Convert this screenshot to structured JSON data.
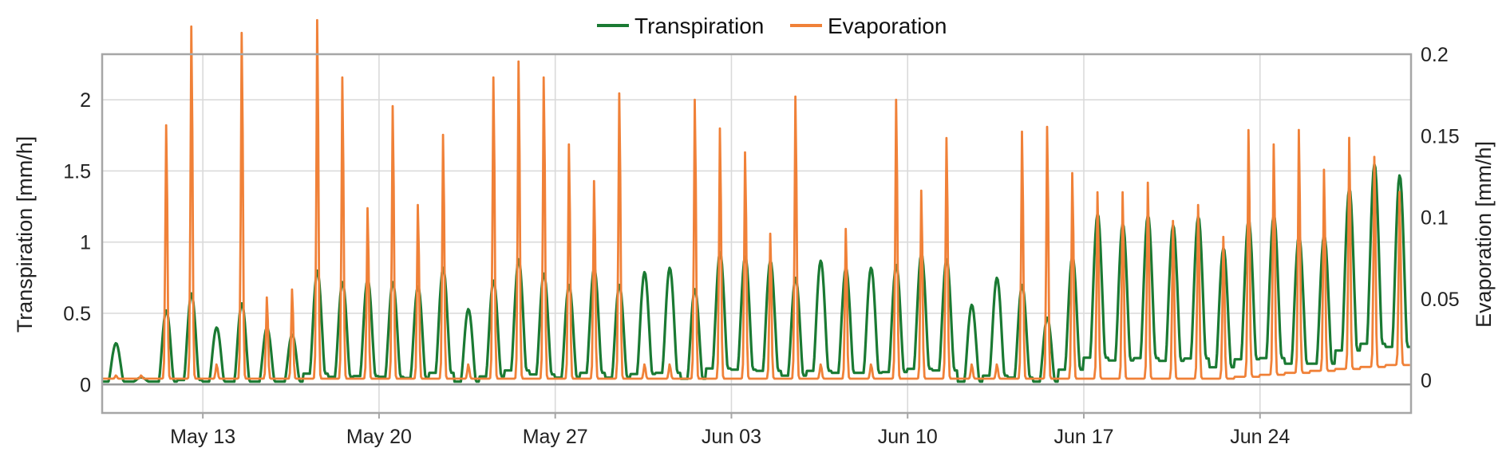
{
  "chart_data": {
    "type": "line",
    "title": "",
    "legend": {
      "placement": "top-center",
      "entries": [
        "Transpiration",
        "Evaporation"
      ]
    },
    "grid": true,
    "x_axis": {
      "type": "date",
      "range": [
        "May 9",
        "Jun 29"
      ],
      "tick_labels": [
        "May 13",
        "May 20",
        "May 27",
        "Jun 03",
        "Jun 10",
        "Jun 17",
        "Jun 24"
      ],
      "tick_dates": [
        "May 13",
        "May 20",
        "May 27",
        "Jun 3",
        "Jun 10",
        "Jun 17",
        "Jun 24"
      ]
    },
    "y_left": {
      "label": "Transpiration [mm/h]",
      "range": [
        -0.2,
        2.32
      ],
      "ticks": [
        0,
        0.5,
        1,
        1.5,
        2
      ],
      "tick_labels": [
        "0",
        "0.5",
        "1",
        "1.5",
        "2"
      ]
    },
    "y_right": {
      "label": "Evaporation [mm/h]",
      "range": [
        -0.02,
        0.2
      ],
      "ticks": [
        0,
        0.05,
        0.1,
        0.15,
        0.2
      ],
      "tick_labels": [
        "0",
        "0.05",
        "0.1",
        "0.15",
        "0.2"
      ]
    },
    "series": [
      {
        "name": "Transpiration",
        "axis": "left",
        "color": "#1a7a33",
        "daily_peaks": [
          {
            "date": "May 9",
            "value": 0.29
          },
          {
            "date": "May 10",
            "value": 0.05
          },
          {
            "date": "May 11",
            "value": 0.52
          },
          {
            "date": "May 12",
            "value": 0.64
          },
          {
            "date": "May 13",
            "value": 0.4
          },
          {
            "date": "May 14",
            "value": 0.57
          },
          {
            "date": "May 15",
            "value": 0.4
          },
          {
            "date": "May 16",
            "value": 0.35
          },
          {
            "date": "May 17",
            "value": 0.8
          },
          {
            "date": "May 18",
            "value": 0.72
          },
          {
            "date": "May 19",
            "value": 0.74
          },
          {
            "date": "May 20",
            "value": 0.72
          },
          {
            "date": "May 21",
            "value": 0.69
          },
          {
            "date": "May 22",
            "value": 0.82
          },
          {
            "date": "May 23",
            "value": 0.53
          },
          {
            "date": "May 24",
            "value": 0.73
          },
          {
            "date": "May 25",
            "value": 0.88
          },
          {
            "date": "May 26",
            "value": 0.78
          },
          {
            "date": "May 27",
            "value": 0.7
          },
          {
            "date": "May 28",
            "value": 0.82
          },
          {
            "date": "May 29",
            "value": 0.7
          },
          {
            "date": "May 30",
            "value": 0.79
          },
          {
            "date": "May 31",
            "value": 0.82
          },
          {
            "date": "Jun 1",
            "value": 0.67
          },
          {
            "date": "Jun 2",
            "value": 0.93
          },
          {
            "date": "Jun 3",
            "value": 0.9
          },
          {
            "date": "Jun 4",
            "value": 0.87
          },
          {
            "date": "Jun 5",
            "value": 0.75
          },
          {
            "date": "Jun 6",
            "value": 0.87
          },
          {
            "date": "Jun 7",
            "value": 0.82
          },
          {
            "date": "Jun 8",
            "value": 0.82
          },
          {
            "date": "Jun 9",
            "value": 0.84
          },
          {
            "date": "Jun 10",
            "value": 0.92
          },
          {
            "date": "Jun 11",
            "value": 0.88
          },
          {
            "date": "Jun 12",
            "value": 0.56
          },
          {
            "date": "Jun 13",
            "value": 0.75
          },
          {
            "date": "Jun 14",
            "value": 0.7
          },
          {
            "date": "Jun 15",
            "value": 0.47
          },
          {
            "date": "Jun 16",
            "value": 0.9
          },
          {
            "date": "Jun 17",
            "value": 1.2
          },
          {
            "date": "Jun 18",
            "value": 1.13
          },
          {
            "date": "Jun 19",
            "value": 1.19
          },
          {
            "date": "Jun 20",
            "value": 1.12
          },
          {
            "date": "Jun 21",
            "value": 1.18
          },
          {
            "date": "Jun 22",
            "value": 0.96
          },
          {
            "date": "Jun 23",
            "value": 1.16
          },
          {
            "date": "Jun 24",
            "value": 1.19
          },
          {
            "date": "Jun 25",
            "value": 1.05
          },
          {
            "date": "Jun 26",
            "value": 1.05
          },
          {
            "date": "Jun 27",
            "value": 1.38
          },
          {
            "date": "Jun 28",
            "value": 1.55
          },
          {
            "date": "Jun 29",
            "value": 1.47
          }
        ]
      },
      {
        "name": "Evaporation",
        "axis": "right",
        "color": "#f08138",
        "daily_peaks": [
          {
            "date": "May 9",
            "value": 0.003
          },
          {
            "date": "May 10",
            "value": 0.003
          },
          {
            "date": "May 11",
            "value": 0.16
          },
          {
            "date": "May 12",
            "value": 0.222
          },
          {
            "date": "May 13",
            "value": 0.01
          },
          {
            "date": "May 14",
            "value": 0.218
          },
          {
            "date": "May 15",
            "value": 0.052
          },
          {
            "date": "May 16",
            "value": 0.057
          },
          {
            "date": "May 17",
            "value": 0.226
          },
          {
            "date": "May 18",
            "value": 0.19
          },
          {
            "date": "May 19",
            "value": 0.108
          },
          {
            "date": "May 20",
            "value": 0.172
          },
          {
            "date": "May 21",
            "value": 0.11
          },
          {
            "date": "May 22",
            "value": 0.154
          },
          {
            "date": "May 23",
            "value": 0.01
          },
          {
            "date": "May 24",
            "value": 0.19
          },
          {
            "date": "May 25",
            "value": 0.2
          },
          {
            "date": "May 26",
            "value": 0.19
          },
          {
            "date": "May 27",
            "value": 0.148
          },
          {
            "date": "May 28",
            "value": 0.125
          },
          {
            "date": "May 29",
            "value": 0.18
          },
          {
            "date": "May 30",
            "value": 0.01
          },
          {
            "date": "May 31",
            "value": 0.01
          },
          {
            "date": "Jun 1",
            "value": 0.176
          },
          {
            "date": "Jun 2",
            "value": 0.158
          },
          {
            "date": "Jun 3",
            "value": 0.143
          },
          {
            "date": "Jun 4",
            "value": 0.092
          },
          {
            "date": "Jun 5",
            "value": 0.178
          },
          {
            "date": "Jun 6",
            "value": 0.01
          },
          {
            "date": "Jun 7",
            "value": 0.095
          },
          {
            "date": "Jun 8",
            "value": 0.01
          },
          {
            "date": "Jun 9",
            "value": 0.176
          },
          {
            "date": "Jun 10",
            "value": 0.119
          },
          {
            "date": "Jun 11",
            "value": 0.152
          },
          {
            "date": "Jun 12",
            "value": 0.01
          },
          {
            "date": "Jun 13",
            "value": 0.01
          },
          {
            "date": "Jun 14",
            "value": 0.156
          },
          {
            "date": "Jun 15",
            "value": 0.159
          },
          {
            "date": "Jun 16",
            "value": 0.13
          },
          {
            "date": "Jun 17",
            "value": 0.118
          },
          {
            "date": "Jun 18",
            "value": 0.118
          },
          {
            "date": "Jun 19",
            "value": 0.124
          },
          {
            "date": "Jun 20",
            "value": 0.1
          },
          {
            "date": "Jun 21",
            "value": 0.11
          },
          {
            "date": "Jun 22",
            "value": 0.09
          },
          {
            "date": "Jun 23",
            "value": 0.157
          },
          {
            "date": "Jun 24",
            "value": 0.148
          },
          {
            "date": "Jun 25",
            "value": 0.157
          },
          {
            "date": "Jun 26",
            "value": 0.132
          },
          {
            "date": "Jun 27",
            "value": 0.152
          },
          {
            "date": "Jun 28",
            "value": 0.14
          },
          {
            "date": "Jun 29",
            "value": 0.118
          }
        ]
      }
    ]
  }
}
